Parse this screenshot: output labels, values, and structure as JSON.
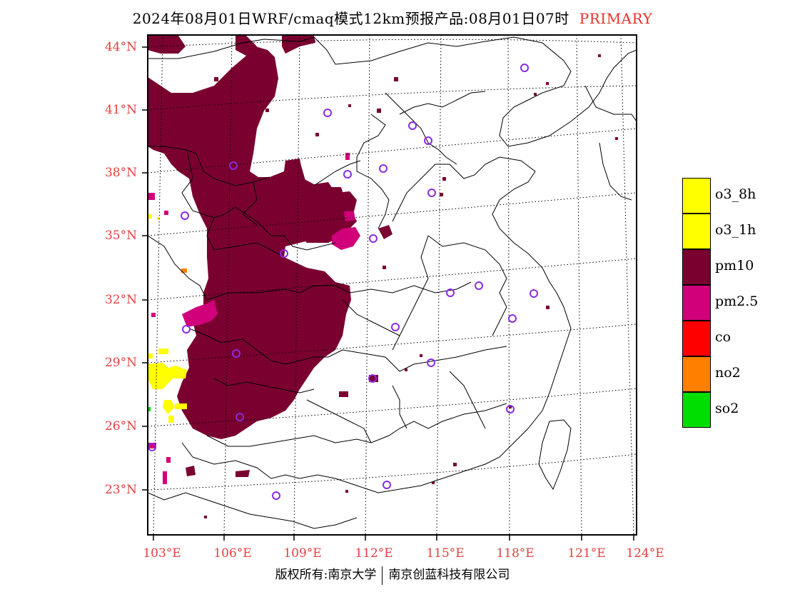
{
  "title": {
    "text": "2024年08月01日WRF/cmaq模式12km预报产品:08月01日07时",
    "tag": "PRIMARY",
    "tag_color": "#e8302a"
  },
  "axes": {
    "lat_labels": [
      "44°N",
      "41°N",
      "38°N",
      "35°N",
      "32°N",
      "29°N",
      "26°N",
      "23°N"
    ],
    "lon_labels": [
      "103°E",
      "106°E",
      "109°E",
      "112°E",
      "115°E",
      "118°E",
      "121°E",
      "124°E"
    ],
    "label_color": "#e34040"
  },
  "legend": [
    {
      "label": "o3_8h",
      "color": "#ffff00"
    },
    {
      "label": "o3_1h",
      "color": "#ffff00"
    },
    {
      "label": "pm10",
      "color": "#7a0030"
    },
    {
      "label": "pm2.5",
      "color": "#d1007a"
    },
    {
      "label": "co",
      "color": "#ff0000"
    },
    {
      "label": "no2",
      "color": "#ff7f00"
    },
    {
      "label": "so2",
      "color": "#00dd00"
    }
  ],
  "footer": {
    "left": "版权所有:南京大学",
    "right": "南京创蓝科技有限公司"
  },
  "map": {
    "grid": "dotted",
    "station_marker_color": "#8a2be2",
    "pollutant_fill": {
      "pm10": "#7a0030",
      "pm2_5": "#d1007a",
      "o3": "#ffff00"
    }
  }
}
